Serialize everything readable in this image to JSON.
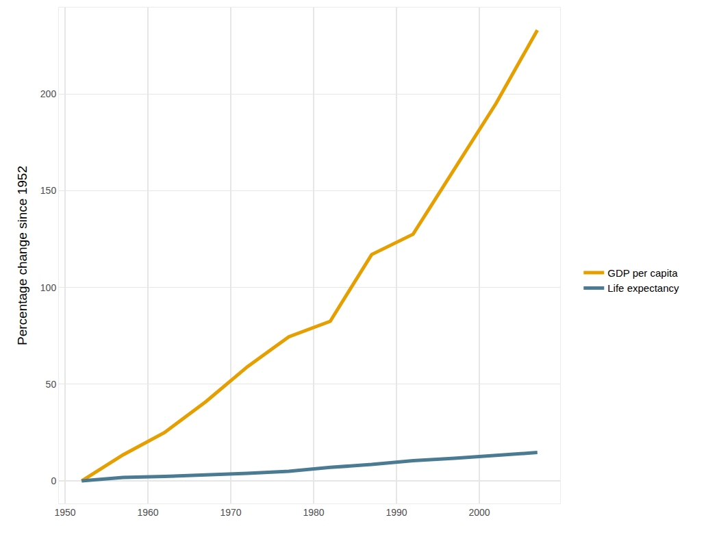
{
  "chart_data": {
    "type": "line",
    "y_label": "Percentage change since 1952",
    "x": [
      1952,
      1957,
      1962,
      1967,
      1972,
      1977,
      1982,
      1987,
      1992,
      1997,
      2002,
      2007
    ],
    "series": [
      {
        "name": "GDP per capita",
        "color": "#E69F00",
        "values": [
          0,
          13.5,
          25,
          41,
          59,
          74.5,
          82.5,
          117,
          127.5,
          161,
          195,
          233
        ]
      },
      {
        "name": "Life expectancy",
        "color": "#4A7B92",
        "values": [
          0,
          1.8,
          2.3,
          3,
          3.9,
          5,
          7,
          8.5,
          10.5,
          11.7,
          13.3,
          14.7
        ]
      }
    ],
    "xlim": [
      1949.25,
      2009.75
    ],
    "xticks": [
      1950,
      1960,
      1970,
      1980,
      1990,
      2000
    ],
    "ylim": [
      -11.65,
      244.65
    ],
    "yticks": [
      0,
      50,
      100,
      150,
      200
    ],
    "grid": true,
    "legend": "right"
  }
}
